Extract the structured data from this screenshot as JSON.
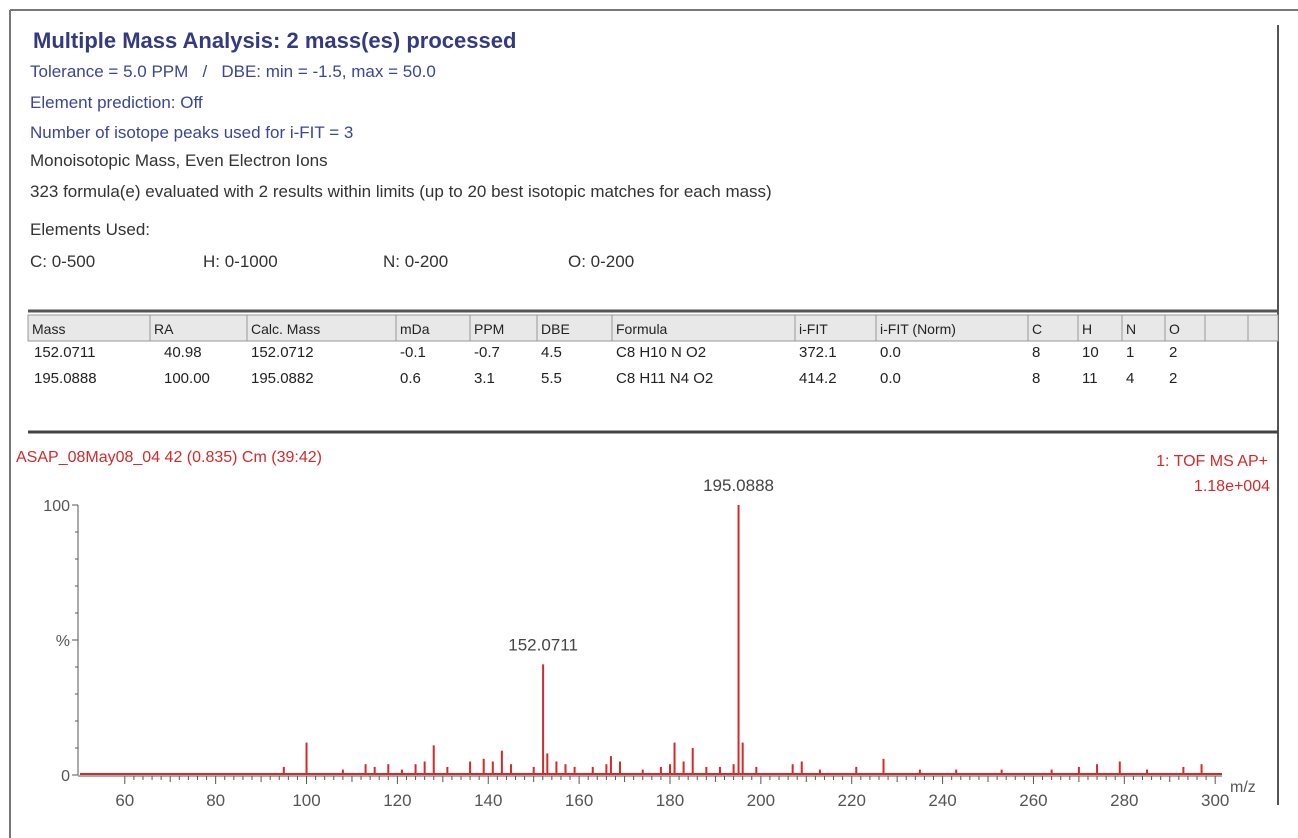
{
  "header": {
    "title": "Multiple Mass Analysis: 2 mass(es) processed",
    "lines": [
      "Tolerance = 5.0 PPM   /   DBE: min = -1.5, max = 50.0",
      "Element prediction: Off",
      "Number of isotope peaks used for i-FIT = 3",
      "Monoisotopic Mass, Even Electron Ions",
      "323 formula(e) evaluated with 2 results within limits (up to 20 best isotopic matches for each mass)"
    ]
  },
  "elements": {
    "label": "Elements Used:",
    "items": [
      "C: 0-500",
      "H: 0-1000",
      "N: 0-200",
      "O: 0-200"
    ]
  },
  "table": {
    "columns": [
      "Mass",
      "RA",
      "Calc. Mass",
      "mDa",
      "PPM",
      "DBE",
      "Formula",
      "i-FIT",
      "i-FIT (Norm)",
      "C",
      "H",
      "N",
      "O"
    ],
    "rows": [
      [
        "152.0711",
        "40.98",
        "152.0712",
        "-0.1",
        "-0.7",
        "4.5",
        "C8 H10 N O2",
        "372.1",
        "0.0",
        "8",
        "10",
        "1",
        "2"
      ],
      [
        "195.0888",
        "100.00",
        "195.0882",
        "0.6",
        "3.1",
        "5.5",
        "C8 H11 N4 O2",
        "414.2",
        "0.0",
        "8",
        "11",
        "4",
        "2"
      ]
    ]
  },
  "chart_data": {
    "type": "spectrum",
    "title": "ASAP_08May08_04 42 (0.835) Cm (39:42)",
    "scan": "1: TOF MS AP+",
    "intensity": "1.18e+004",
    "xlabel": "m/z",
    "color": "#d42a2a",
    "x": [
      95,
      100,
      108,
      113,
      115,
      118,
      121,
      124,
      126,
      128,
      131,
      136,
      139,
      141,
      143,
      145,
      150,
      152.0711,
      153,
      155,
      157,
      159,
      163,
      166,
      167,
      169,
      174,
      178,
      180,
      181,
      183,
      185,
      188,
      191,
      194,
      195.0888,
      196,
      199,
      207,
      209,
      213,
      221,
      227,
      235,
      243,
      253,
      264,
      270,
      274,
      279,
      285,
      293,
      297
    ],
    "values": [
      3,
      12,
      2,
      4,
      3,
      4,
      2,
      4,
      5,
      11,
      3,
      5,
      6,
      5,
      9,
      4,
      3,
      40.98,
      8,
      5,
      4,
      3,
      3,
      4,
      7,
      5,
      2,
      3,
      4,
      12,
      5,
      10,
      3,
      3,
      4,
      100,
      12,
      3,
      4,
      5,
      2,
      3,
      6,
      2,
      2,
      2,
      2,
      3,
      4,
      5,
      2,
      3,
      4
    ],
    "xlim": [
      49.7,
      301.5
    ],
    "ylim": [
      0,
      100
    ],
    "xticks": [
      60,
      80,
      100,
      120,
      140,
      160,
      180,
      200,
      220,
      240,
      260,
      280,
      300
    ],
    "yticks": [
      0,
      {
        "value": 50,
        "label": "%"
      },
      100
    ]
  }
}
